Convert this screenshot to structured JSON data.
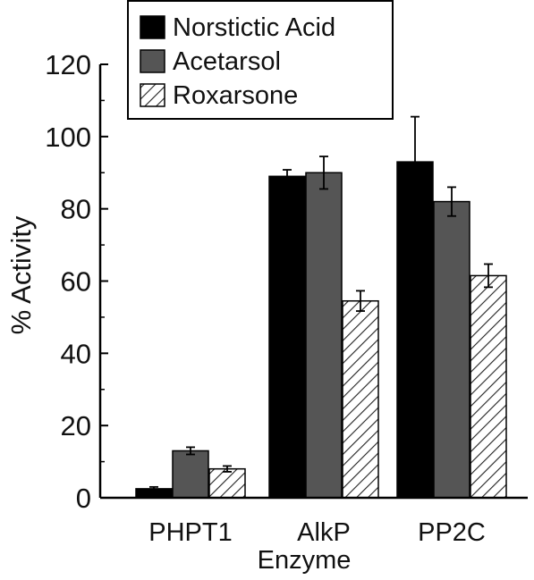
{
  "chart_data": {
    "type": "bar",
    "categories": [
      "PHPT1",
      "AlkP",
      "PP2C"
    ],
    "xlabel": "Enzyme",
    "ylabel": "% Activity",
    "ylim": [
      0,
      120
    ],
    "yticks": [
      0,
      20,
      40,
      60,
      80,
      100,
      120
    ],
    "grid": false,
    "legend_position": "top-center",
    "series": [
      {
        "name": "Norstictic Acid",
        "values": [
          2.5,
          89,
          93
        ],
        "errors": [
          0.5,
          1.8,
          12.5
        ],
        "color": "#000000",
        "pattern": "solid"
      },
      {
        "name": "Acetarsol",
        "values": [
          13,
          90,
          82
        ],
        "errors": [
          1,
          4.5,
          4
        ],
        "color": "#555555",
        "pattern": "solid"
      },
      {
        "name": "Roxarsone",
        "values": [
          8,
          54.5,
          61.5
        ],
        "errors": [
          0.8,
          2.8,
          3.2
        ],
        "color": "#ffffff",
        "pattern": "diagonal-hatch"
      }
    ]
  }
}
